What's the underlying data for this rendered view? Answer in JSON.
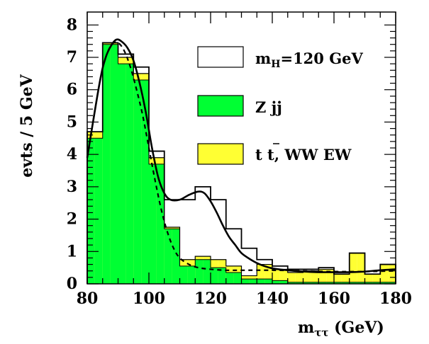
{
  "chart_data": {
    "type": "bar",
    "style": "stacked-histogram",
    "xlabel": "m",
    "xlabel_sub": "ττ",
    "xlabel_unit": " (GeV)",
    "ylabel": "evts / 5 GeV",
    "xlim": [
      80,
      180
    ],
    "ylim": [
      0,
      8.4
    ],
    "x_ticks": [
      80,
      100,
      120,
      140,
      160,
      180
    ],
    "y_ticks": [
      0,
      1,
      2,
      3,
      4,
      5,
      6,
      7,
      8
    ],
    "bin_width": 2.5,
    "grid": false,
    "legend_position": "top-right",
    "colors": {
      "zjj": "#00ff33",
      "bkg": "#ffff33",
      "signal": "#ffffff",
      "line": "#000000"
    },
    "bin_edges": [
      80,
      82.5,
      85,
      87.5,
      90,
      92.5,
      95,
      97.5,
      100,
      102.5,
      105,
      107.5,
      110,
      112.5,
      115,
      117.5,
      120,
      122.5,
      125,
      127.5,
      130,
      132.5,
      135,
      137.5,
      140,
      142.5,
      145,
      147.5,
      150,
      152.5,
      155,
      157.5,
      160,
      162.5,
      165,
      167.5,
      170,
      172.5,
      175,
      177.5,
      180
    ],
    "series": [
      {
        "name": "Z jj",
        "values": [
          4.5,
          4.5,
          7.4,
          7.4,
          6.8,
          6.8,
          6.3,
          6.3,
          3.7,
          3.7,
          1.7,
          1.7,
          0.55,
          0.55,
          0.75,
          0.75,
          0.5,
          0.5,
          0.35,
          0.35,
          0.15,
          0.15,
          0.15,
          0.15,
          0.1,
          0.1,
          0.05,
          0.05,
          0.05,
          0.05,
          0.05,
          0.05,
          0.05,
          0.05,
          0.05,
          0.05,
          0.05,
          0.05,
          0.05,
          0.05
        ]
      },
      {
        "name": "t t, WW EW",
        "values": [
          4.7,
          4.7,
          7.45,
          7.45,
          7.0,
          7.0,
          6.5,
          6.5,
          3.9,
          3.9,
          1.75,
          1.75,
          0.75,
          0.75,
          0.85,
          0.85,
          0.75,
          0.75,
          0.55,
          0.55,
          0.25,
          0.25,
          0.6,
          0.6,
          0.45,
          0.45,
          0.35,
          0.35,
          0.4,
          0.4,
          0.45,
          0.45,
          0.3,
          0.3,
          0.95,
          0.95,
          0.3,
          0.3,
          0.6,
          0.6
        ]
      },
      {
        "name": "m_H=120 GeV",
        "values": [
          4.7,
          4.7,
          7.45,
          7.45,
          7.1,
          7.1,
          6.7,
          6.7,
          4.1,
          4.1,
          2.6,
          2.6,
          2.6,
          2.6,
          3.0,
          3.0,
          2.6,
          2.6,
          1.7,
          1.7,
          1.1,
          1.1,
          0.75,
          0.75,
          0.55,
          0.55,
          0.45,
          0.45,
          0.45,
          0.45,
          0.5,
          0.5,
          0.3,
          0.3,
          0.95,
          0.95,
          0.3,
          0.3,
          0.6,
          0.6
        ]
      }
    ],
    "fit_total": {
      "x": [
        80,
        84,
        86,
        88,
        89.5,
        91,
        93,
        95,
        97,
        99,
        101,
        103,
        105,
        107,
        110,
        113,
        116,
        118,
        120,
        122,
        124,
        126,
        128,
        130,
        133,
        136,
        140,
        145,
        150,
        155,
        160,
        165,
        170,
        175,
        180
      ],
      "y": [
        3.9,
        6.2,
        7.0,
        7.4,
        7.55,
        7.5,
        7.3,
        6.9,
        6.2,
        5.3,
        4.2,
        3.3,
        2.8,
        2.6,
        2.6,
        2.75,
        2.85,
        2.8,
        2.55,
        2.2,
        1.8,
        1.45,
        1.2,
        0.95,
        0.75,
        0.6,
        0.48,
        0.42,
        0.38,
        0.36,
        0.36,
        0.36,
        0.38,
        0.42,
        0.45
      ]
    },
    "fit_background": {
      "x": [
        80,
        84,
        86,
        88,
        90,
        92,
        94,
        96,
        98,
        100,
        102,
        104,
        106,
        108,
        110,
        113,
        116,
        120,
        125,
        130,
        140,
        150,
        160,
        170,
        180
      ],
      "y": [
        3.9,
        6.2,
        7.0,
        7.4,
        7.45,
        7.2,
        6.7,
        6.0,
        5.2,
        4.2,
        3.2,
        2.3,
        1.6,
        1.1,
        0.8,
        0.6,
        0.5,
        0.45,
        0.42,
        0.42,
        0.42,
        0.4,
        0.38,
        0.38,
        0.4
      ]
    },
    "legend": {
      "signal_label_main": "m",
      "signal_label_sub": "H",
      "signal_label_rest": "=120 GeV",
      "zjj_label": "Z jj",
      "bkg_label": "t t, WW EW"
    }
  }
}
